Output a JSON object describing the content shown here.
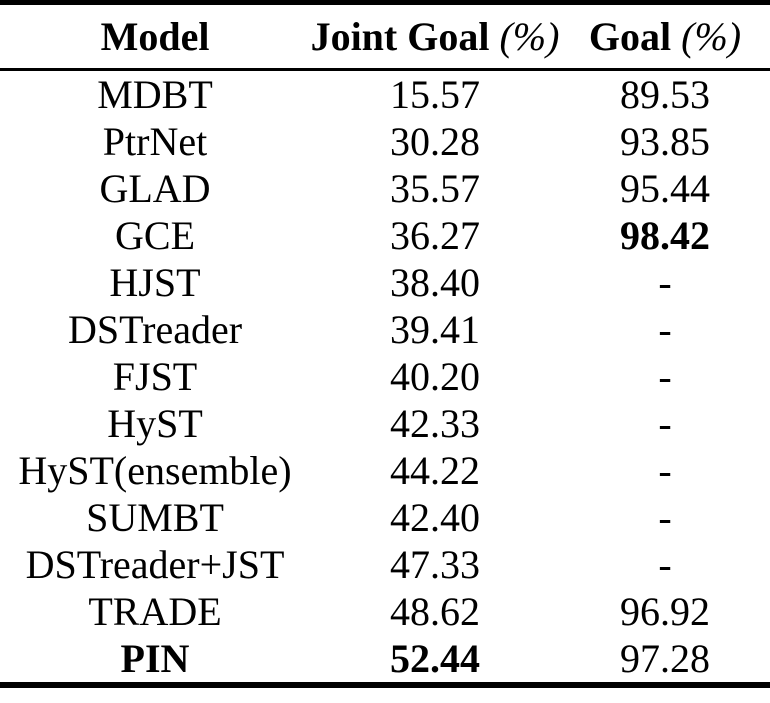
{
  "table": {
    "columns": [
      {
        "label": "Model",
        "suffix": ""
      },
      {
        "label": "Joint Goal",
        "suffix": "(%)"
      },
      {
        "label": "Goal",
        "suffix": "(%)"
      }
    ],
    "rows": [
      {
        "model": "MDBT",
        "joint_goal": "15.57",
        "goal": "89.53",
        "model_bold": false,
        "joint_bold": false,
        "goal_bold": false
      },
      {
        "model": "PtrNet",
        "joint_goal": "30.28",
        "goal": "93.85",
        "model_bold": false,
        "joint_bold": false,
        "goal_bold": false
      },
      {
        "model": "GLAD",
        "joint_goal": "35.57",
        "goal": "95.44",
        "model_bold": false,
        "joint_bold": false,
        "goal_bold": false
      },
      {
        "model": "GCE",
        "joint_goal": "36.27",
        "goal": "98.42",
        "model_bold": false,
        "joint_bold": false,
        "goal_bold": true
      },
      {
        "model": "HJST",
        "joint_goal": "38.40",
        "goal": "-",
        "model_bold": false,
        "joint_bold": false,
        "goal_bold": false
      },
      {
        "model": "DSTreader",
        "joint_goal": "39.41",
        "goal": "-",
        "model_bold": false,
        "joint_bold": false,
        "goal_bold": false
      },
      {
        "model": "FJST",
        "joint_goal": "40.20",
        "goal": "-",
        "model_bold": false,
        "joint_bold": false,
        "goal_bold": false
      },
      {
        "model": "HyST",
        "joint_goal": "42.33",
        "goal": "-",
        "model_bold": false,
        "joint_bold": false,
        "goal_bold": false
      },
      {
        "model": "HyST(ensemble)",
        "joint_goal": "44.22",
        "goal": "-",
        "model_bold": false,
        "joint_bold": false,
        "goal_bold": false
      },
      {
        "model": "SUMBT",
        "joint_goal": "42.40",
        "goal": "-",
        "model_bold": false,
        "joint_bold": false,
        "goal_bold": false
      },
      {
        "model": "DSTreader+JST",
        "joint_goal": "47.33",
        "goal": "-",
        "model_bold": false,
        "joint_bold": false,
        "goal_bold": false
      },
      {
        "model": "TRADE",
        "joint_goal": "48.62",
        "goal": "96.92",
        "model_bold": false,
        "joint_bold": false,
        "goal_bold": false
      },
      {
        "model": "PIN",
        "joint_goal": "52.44",
        "goal": "97.28",
        "model_bold": true,
        "joint_bold": true,
        "goal_bold": false
      }
    ],
    "text_color": "#000000",
    "background_color": "#ffffff"
  }
}
